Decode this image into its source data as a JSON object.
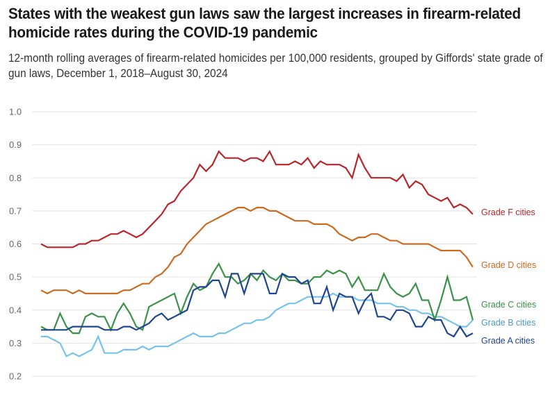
{
  "header": {
    "title": "States with the weakest gun laws saw the largest increases in firearm-related homicide rates during the COVID-19 pandemic",
    "subtitle": "12-month rolling averages of firearm-related homicides per 100,000 residents, grouped by Giffords' state grade of gun laws, December 1, 2018–August 30, 2024"
  },
  "chart_data": {
    "type": "line",
    "title": "States with the weakest gun laws saw the largest increases in firearm-related homicide rates during the COVID-19 pandemic",
    "subtitle": "12-month rolling averages of firearm-related homicides per 100,000 residents, grouped by Giffords' state grade of gun laws, December 1, 2018–August 30, 2024",
    "xlabel": "",
    "ylabel": "",
    "x_range": [
      "December 2018",
      "August 2024"
    ],
    "ylim": [
      0.2,
      1.0
    ],
    "yticks": [
      "0.2",
      "0.3",
      "0.4",
      "0.5",
      "0.6",
      "0.7",
      "0.8",
      "0.9",
      "1.0"
    ],
    "grid": true,
    "legend": "direct labels at right end of lines",
    "series": [
      {
        "name": "Grade F cities",
        "color": "#b8262b",
        "values": [
          0.6,
          0.59,
          0.59,
          0.59,
          0.59,
          0.59,
          0.6,
          0.6,
          0.61,
          0.61,
          0.62,
          0.63,
          0.63,
          0.64,
          0.63,
          0.62,
          0.63,
          0.65,
          0.67,
          0.69,
          0.72,
          0.73,
          0.76,
          0.78,
          0.8,
          0.84,
          0.82,
          0.84,
          0.88,
          0.86,
          0.86,
          0.86,
          0.85,
          0.86,
          0.86,
          0.85,
          0.88,
          0.84,
          0.84,
          0.84,
          0.85,
          0.84,
          0.86,
          0.83,
          0.85,
          0.84,
          0.84,
          0.84,
          0.83,
          0.8,
          0.87,
          0.83,
          0.8,
          0.8,
          0.8,
          0.8,
          0.79,
          0.81,
          0.77,
          0.79,
          0.78,
          0.75,
          0.74,
          0.73,
          0.74,
          0.71,
          0.72,
          0.71,
          0.69
        ]
      },
      {
        "name": "Grade D cities",
        "color": "#cc6a1f",
        "values": [
          0.46,
          0.45,
          0.46,
          0.46,
          0.46,
          0.45,
          0.46,
          0.45,
          0.45,
          0.45,
          0.45,
          0.45,
          0.45,
          0.46,
          0.46,
          0.47,
          0.48,
          0.48,
          0.5,
          0.51,
          0.53,
          0.56,
          0.57,
          0.6,
          0.62,
          0.64,
          0.66,
          0.67,
          0.68,
          0.69,
          0.7,
          0.71,
          0.71,
          0.7,
          0.71,
          0.71,
          0.7,
          0.7,
          0.69,
          0.68,
          0.67,
          0.67,
          0.67,
          0.66,
          0.66,
          0.66,
          0.65,
          0.63,
          0.62,
          0.61,
          0.62,
          0.62,
          0.63,
          0.63,
          0.62,
          0.61,
          0.61,
          0.6,
          0.6,
          0.6,
          0.6,
          0.6,
          0.59,
          0.58,
          0.58,
          0.58,
          0.58,
          0.56,
          0.53
        ]
      },
      {
        "name": "Grade C cities",
        "color": "#3a9148",
        "values": [
          0.35,
          0.34,
          0.34,
          0.39,
          0.35,
          0.33,
          0.33,
          0.38,
          0.39,
          0.38,
          0.38,
          0.34,
          0.39,
          0.42,
          0.39,
          0.35,
          0.34,
          0.41,
          0.42,
          0.43,
          0.44,
          0.45,
          0.39,
          0.44,
          0.48,
          0.46,
          0.47,
          0.51,
          0.54,
          0.5,
          0.5,
          0.48,
          0.49,
          0.51,
          0.49,
          0.52,
          0.5,
          0.49,
          0.51,
          0.49,
          0.49,
          0.48,
          0.48,
          0.5,
          0.5,
          0.52,
          0.51,
          0.52,
          0.51,
          0.47,
          0.5,
          0.46,
          0.46,
          0.46,
          0.51,
          0.47,
          0.45,
          0.44,
          0.45,
          0.48,
          0.43,
          0.43,
          0.37,
          0.43,
          0.5,
          0.43,
          0.43,
          0.44,
          0.37
        ]
      },
      {
        "name": "Grade B cities",
        "color": "#76c3ea",
        "values": [
          0.32,
          0.32,
          0.31,
          0.3,
          0.26,
          0.27,
          0.26,
          0.27,
          0.28,
          0.32,
          0.27,
          0.27,
          0.27,
          0.28,
          0.28,
          0.28,
          0.29,
          0.28,
          0.29,
          0.29,
          0.29,
          0.3,
          0.31,
          0.32,
          0.33,
          0.32,
          0.32,
          0.32,
          0.33,
          0.33,
          0.34,
          0.35,
          0.36,
          0.36,
          0.37,
          0.37,
          0.38,
          0.4,
          0.41,
          0.42,
          0.42,
          0.43,
          0.44,
          0.44,
          0.44,
          0.44,
          0.45,
          0.44,
          0.44,
          0.44,
          0.43,
          0.43,
          0.43,
          0.42,
          0.42,
          0.42,
          0.41,
          0.41,
          0.4,
          0.4,
          0.39,
          0.39,
          0.38,
          0.38,
          0.37,
          0.36,
          0.35,
          0.35,
          0.37
        ]
      },
      {
        "name": "Grade A cities",
        "color": "#1f4591",
        "values": [
          0.34,
          0.34,
          0.34,
          0.34,
          0.34,
          0.35,
          0.35,
          0.35,
          0.35,
          0.35,
          0.34,
          0.34,
          0.34,
          0.35,
          0.35,
          0.34,
          0.35,
          0.36,
          0.38,
          0.39,
          0.37,
          0.38,
          0.39,
          0.4,
          0.46,
          0.47,
          0.47,
          0.49,
          0.49,
          0.44,
          0.51,
          0.51,
          0.45,
          0.51,
          0.51,
          0.51,
          0.45,
          0.45,
          0.51,
          0.5,
          0.5,
          0.48,
          0.49,
          0.42,
          0.42,
          0.47,
          0.4,
          0.45,
          0.44,
          0.44,
          0.39,
          0.43,
          0.45,
          0.38,
          0.38,
          0.37,
          0.4,
          0.4,
          0.39,
          0.35,
          0.35,
          0.38,
          0.37,
          0.37,
          0.33,
          0.32,
          0.35,
          0.32,
          0.33
        ]
      }
    ]
  }
}
